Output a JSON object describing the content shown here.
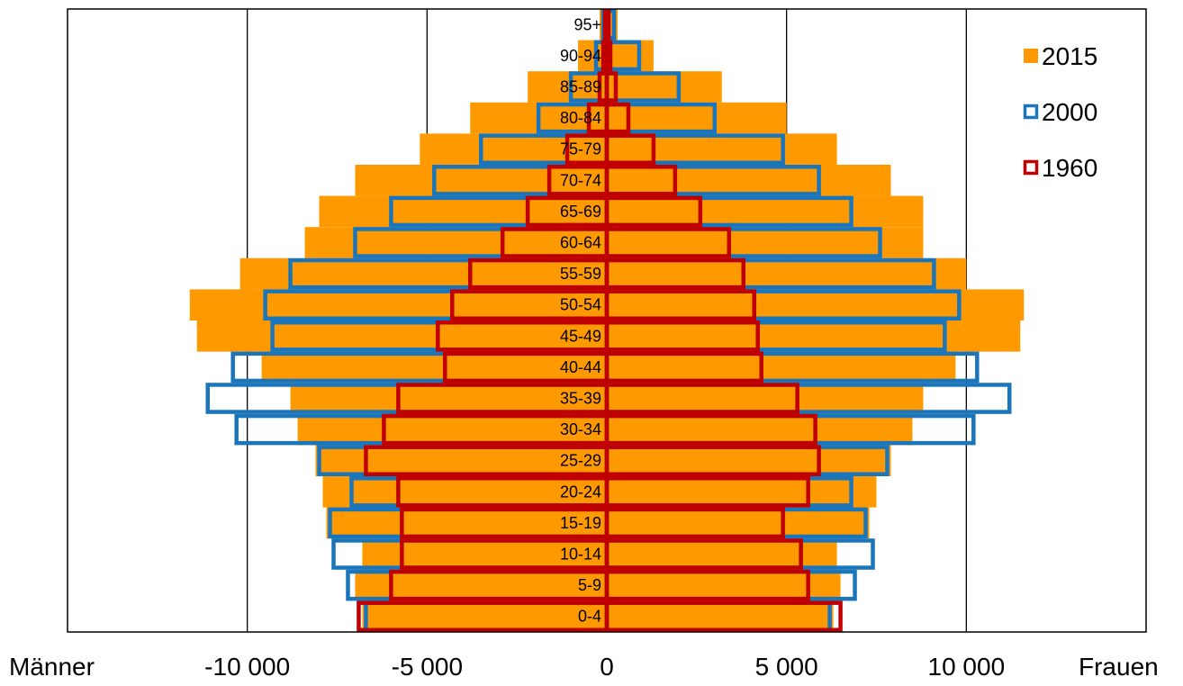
{
  "chart_data": {
    "type": "bar",
    "orientation": "horizontal",
    "categories": [
      "0-4",
      "5-9",
      "10-14",
      "15-19",
      "20-24",
      "25-29",
      "30-34",
      "35-39",
      "40-44",
      "45-49",
      "50-54",
      "55-59",
      "60-64",
      "65-69",
      "70-74",
      "75-79",
      "80-84",
      "85-89",
      "90-94",
      "95+"
    ],
    "series": [
      {
        "name": "2015",
        "style": "filled",
        "color": "#FF9900",
        "maenner": [
          -6800,
          -7000,
          -6800,
          -7800,
          -7900,
          -8100,
          -8600,
          -8800,
          -9600,
          -11400,
          -11600,
          -10200,
          -8400,
          -8000,
          -7000,
          -5200,
          -3800,
          -2200,
          -800,
          -200
        ],
        "frauen": [
          6300,
          6500,
          6400,
          7300,
          7500,
          7900,
          8500,
          8800,
          9700,
          11500,
          11600,
          10000,
          8800,
          8800,
          7900,
          6400,
          5000,
          3200,
          1300,
          300
        ]
      },
      {
        "name": "2000",
        "style": "outline",
        "color": "#1B75BB",
        "maenner": [
          -6700,
          -7200,
          -7600,
          -7700,
          -7100,
          -8000,
          -10300,
          -11100,
          -10400,
          -9300,
          -9500,
          -8800,
          -7000,
          -6000,
          -4800,
          -3500,
          -1900,
          -1000,
          -300,
          -100
        ],
        "frauen": [
          6200,
          6900,
          7400,
          7200,
          6800,
          7800,
          10200,
          11200,
          10300,
          9400,
          9800,
          9100,
          7600,
          6800,
          5900,
          4900,
          3000,
          2000,
          900,
          200
        ]
      },
      {
        "name": "1960",
        "style": "outline",
        "color": "#C00000",
        "maenner": [
          -6900,
          -6000,
          -5700,
          -5700,
          -5800,
          -6700,
          -6200,
          -5800,
          -4500,
          -4700,
          -4300,
          -3800,
          -2900,
          -2200,
          -1600,
          -1100,
          -500,
          -200,
          -100,
          -50
        ],
        "frauen": [
          6500,
          5600,
          5400,
          4900,
          5600,
          5900,
          5800,
          5300,
          4300,
          4200,
          4100,
          3800,
          3400,
          2600,
          1900,
          1300,
          600,
          250,
          100,
          50
        ]
      }
    ],
    "xlim": [
      -15000,
      15000
    ],
    "xticks": [
      -10000,
      -5000,
      0,
      5000,
      10000
    ],
    "xtick_labels": [
      "-10 000",
      "-5 000",
      "0",
      "5 000",
      "10 000"
    ],
    "left_label": "Männer",
    "right_label": "Frauen",
    "grid": "vertical",
    "legend": "top-right"
  }
}
